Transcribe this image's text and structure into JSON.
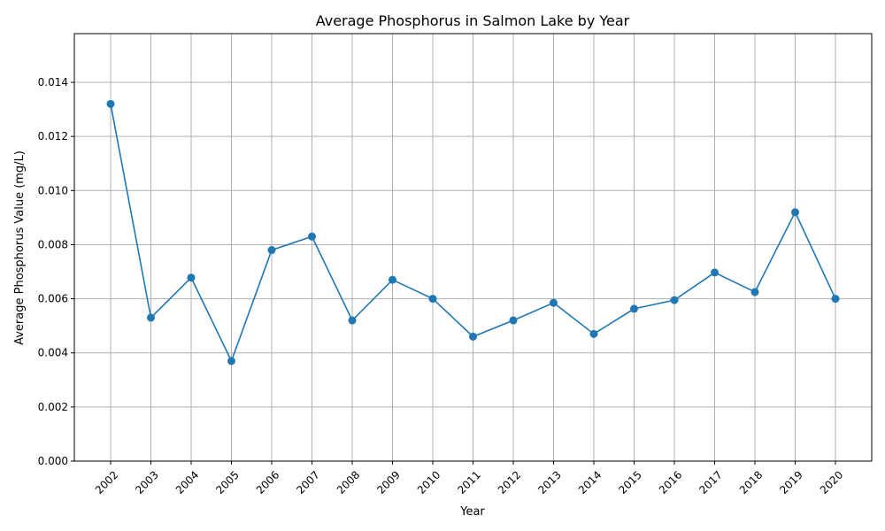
{
  "chart_data": {
    "type": "line",
    "title": "Average Phosphorus in Salmon Lake by Year",
    "xlabel": "Year",
    "ylabel": "Average Phosphorus Value (mg/L)",
    "categories": [
      "2002",
      "2003",
      "2004",
      "2005",
      "2006",
      "2007",
      "2008",
      "2009",
      "2010",
      "2011",
      "2012",
      "2013",
      "2014",
      "2015",
      "2016",
      "2017",
      "2018",
      "2019",
      "2020"
    ],
    "series": [
      {
        "values": [
          0.0132,
          0.0053,
          0.00678,
          0.0037,
          0.0078,
          0.0083,
          0.0052,
          0.0067,
          0.006,
          0.0046,
          0.0052,
          0.00585,
          0.0047,
          0.00563,
          0.00595,
          0.00697,
          0.00625,
          0.0092,
          0.006
        ],
        "color": "#1f77b4"
      }
    ],
    "ylim": [
      0,
      0.0158
    ],
    "yticks": [
      "0.000",
      "0.002",
      "0.004",
      "0.006",
      "0.008",
      "0.010",
      "0.012",
      "0.014"
    ],
    "grid": true,
    "marker": "circle"
  }
}
